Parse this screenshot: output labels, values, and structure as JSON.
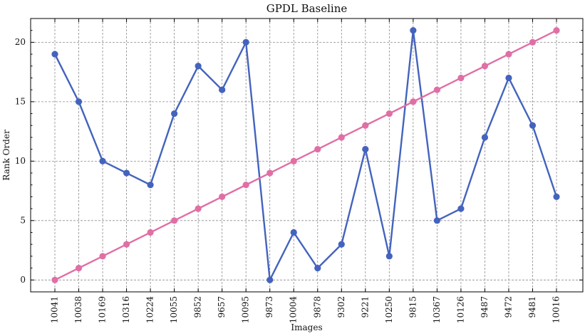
{
  "chart_data": {
    "type": "line",
    "title": "GPDL Baseline",
    "xlabel": "Images",
    "ylabel": "Rank Order",
    "categories": [
      "10041",
      "10038",
      "10169",
      "10316",
      "10224",
      "10055",
      "9852",
      "9657",
      "10095",
      "9873",
      "10004",
      "9878",
      "9302",
      "9221",
      "10250",
      "9815",
      "10367",
      "10126",
      "9487",
      "9472",
      "9481",
      "10016"
    ],
    "ylim": [
      -1,
      22
    ],
    "yticks": [
      0,
      5,
      10,
      15,
      20
    ],
    "grid": true,
    "series": [
      {
        "color": "#4363bd",
        "values": [
          19,
          15,
          10,
          9,
          8,
          14,
          18,
          16,
          20,
          0,
          4,
          1,
          3,
          11,
          2,
          21,
          5,
          6,
          12,
          17,
          13,
          7
        ]
      },
      {
        "color": "#e06fa5",
        "values": [
          0,
          1,
          2,
          3,
          4,
          5,
          6,
          7,
          8,
          9,
          10,
          11,
          12,
          13,
          14,
          15,
          16,
          17,
          18,
          19,
          20,
          21
        ]
      }
    ]
  }
}
